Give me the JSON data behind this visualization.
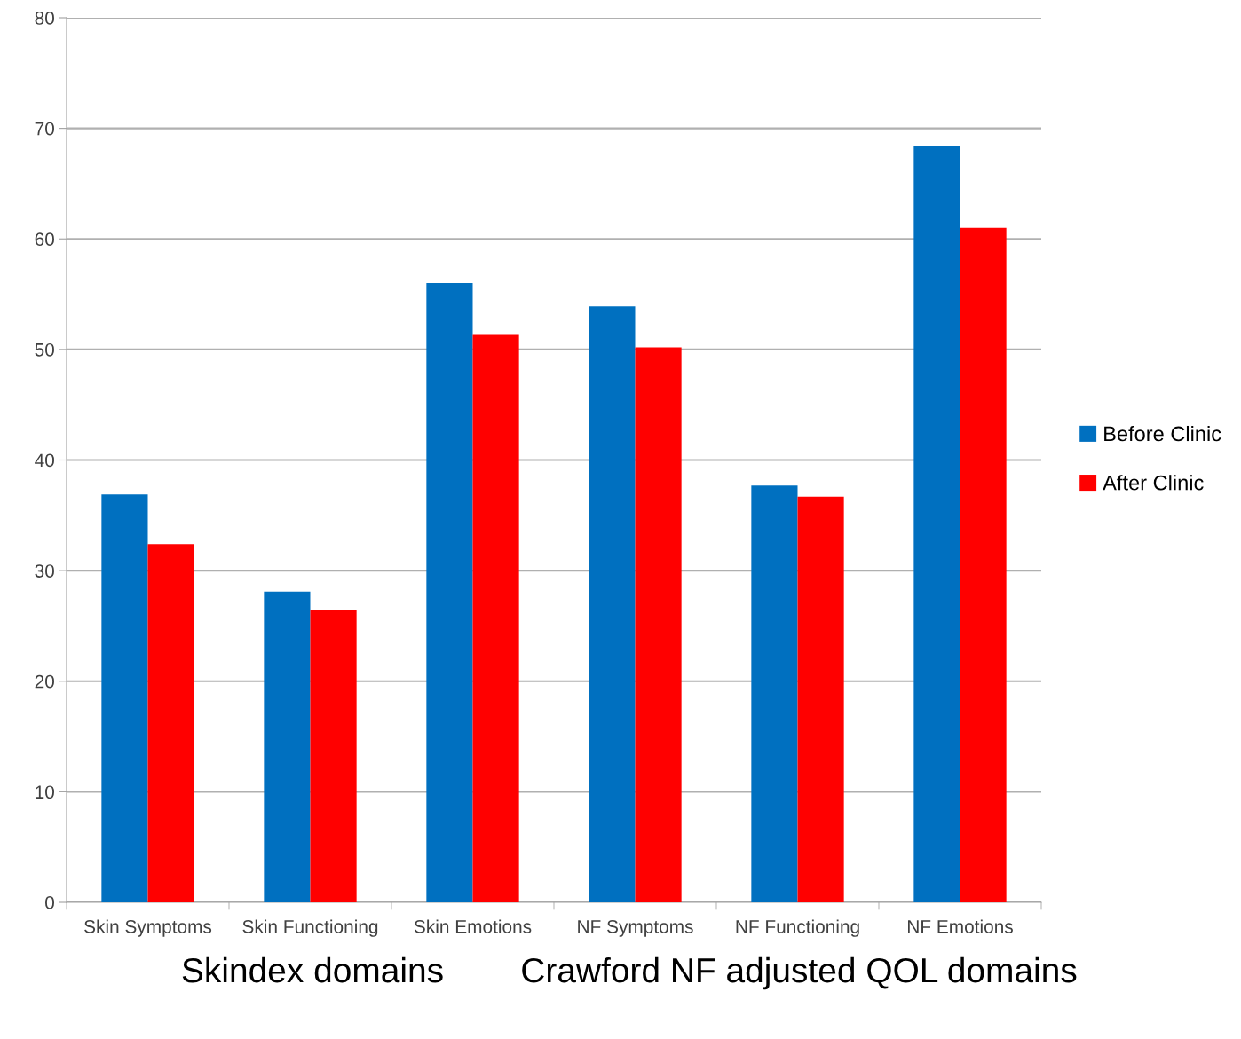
{
  "chart_data": {
    "type": "bar",
    "categories": [
      "Skin Symptoms",
      "Skin Functioning",
      "Skin Emotions",
      "NF Symptoms",
      "NF Functioning",
      "NF Emotions"
    ],
    "series": [
      {
        "name": "Before Clinic",
        "color": "#0070c0",
        "values": [
          36.9,
          28.1,
          56.0,
          53.9,
          37.7,
          68.4
        ]
      },
      {
        "name": "After Clinic",
        "color": "#ff0000",
        "values": [
          32.4,
          26.4,
          51.4,
          50.2,
          36.7,
          61.0
        ]
      }
    ],
    "ylim": [
      0,
      80
    ],
    "yticks": [
      0,
      10,
      20,
      30,
      40,
      50,
      60,
      70,
      80
    ],
    "grid": "y",
    "legend": "right",
    "annotations": [
      "Skindex domains",
      "Crawford NF adjusted QOL domains"
    ]
  }
}
